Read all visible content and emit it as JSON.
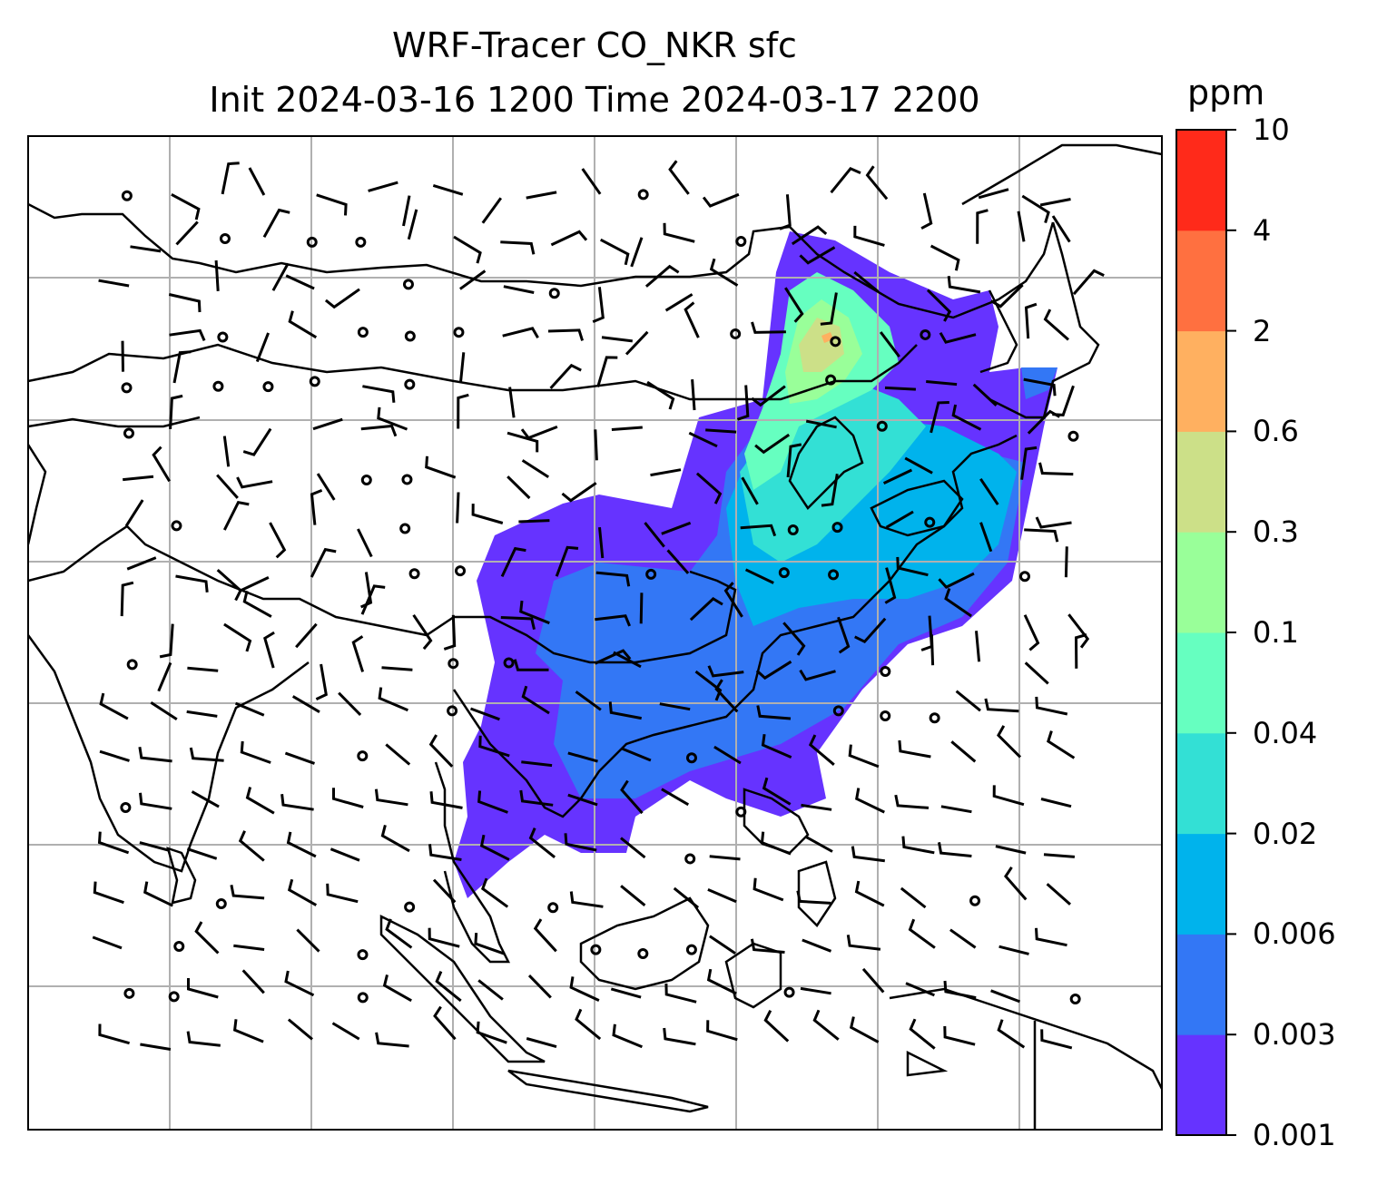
{
  "title": {
    "line1": "WRF-Tracer CO_NKR sfc",
    "line2": "Init 2024-03-16 1200 Time 2024-03-17 2200"
  },
  "colorbar": {
    "units": "ppm",
    "levels": [
      "0.001",
      "0.003",
      "0.006",
      "0.02",
      "0.04",
      "0.1",
      "0.3",
      "0.6",
      "2",
      "4",
      "10"
    ],
    "colors": [
      "#6633ff",
      "#3377f5",
      "#00b3ec",
      "#33e0d5",
      "#66ffc0",
      "#99ff99",
      "#cce088",
      "#ffb060",
      "#ff7040",
      "#ff2a1a"
    ]
  },
  "map": {
    "graticule": "on",
    "overlays": [
      "coastlines",
      "country-borders",
      "wind-barbs"
    ],
    "field": "CO_NKR surface tracer concentration"
  }
}
